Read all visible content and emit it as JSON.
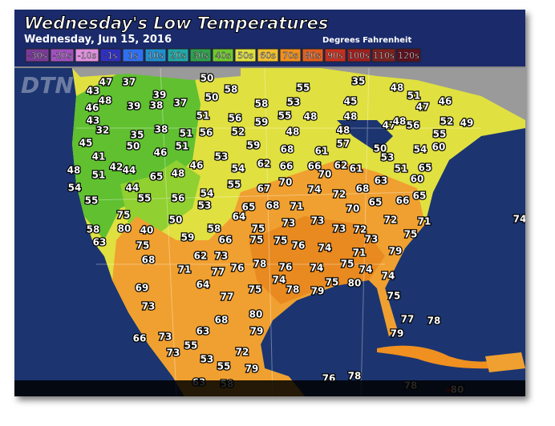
{
  "header": {
    "title": "Wednesday's Low Temperatures",
    "subtitle": "Wednesday, Jun 15, 2016",
    "units": "Degrees Fahrenheit",
    "logo": "DTN"
  },
  "legend": [
    {
      "label": "-30s",
      "color": "#7a3a9a"
    },
    {
      "label": "-20s",
      "color": "#a050c0"
    },
    {
      "label": "-10s",
      "color": "#e090e0"
    },
    {
      "label": "-1s",
      "color": "#3030c0"
    },
    {
      "label": "1s",
      "color": "#3070f0"
    },
    {
      "label": "10s",
      "color": "#2090d0"
    },
    {
      "label": "20s",
      "color": "#20a8a8"
    },
    {
      "label": "30s",
      "color": "#30a050"
    },
    {
      "label": "40s",
      "color": "#70c830"
    },
    {
      "label": "50s",
      "color": "#e0e040"
    },
    {
      "label": "60s",
      "color": "#f0c030"
    },
    {
      "label": "70s",
      "color": "#f09020"
    },
    {
      "label": "80s",
      "color": "#e06020"
    },
    {
      "label": "90s",
      "color": "#c83020"
    },
    {
      "label": "100s",
      "color": "#a02020"
    },
    {
      "label": "110s",
      "color": "#802020"
    },
    {
      "label": "120s",
      "color": "#601020"
    }
  ],
  "readings": [
    47,
    37,
    50,
    55,
    35,
    48,
    43,
    39,
    58,
    51,
    48,
    50,
    37,
    58,
    53,
    45,
    47,
    46,
    46,
    39,
    38,
    43,
    51,
    56,
    55,
    48,
    48,
    47,
    56,
    52,
    49,
    32,
    38,
    51,
    56,
    52,
    59,
    48,
    48,
    48,
    55,
    35,
    45,
    50,
    51,
    59,
    68,
    61,
    57,
    50,
    53,
    54,
    60,
    46,
    53,
    41,
    42,
    44,
    62,
    66,
    66,
    62,
    61,
    51,
    65,
    48,
    51,
    65,
    48,
    46,
    54,
    70,
    60,
    54,
    44,
    55,
    67,
    70,
    74,
    72,
    68,
    63,
    55,
    55,
    56,
    54,
    53,
    66,
    65,
    65,
    68,
    71,
    70,
    65,
    75,
    64,
    73,
    73,
    72,
    71,
    74,
    58,
    80,
    40,
    50,
    58,
    75,
    73,
    72,
    59,
    66,
    75,
    75,
    76,
    74,
    73,
    75,
    63,
    75,
    73,
    62,
    71,
    79,
    68,
    78,
    76,
    74,
    75,
    74,
    71,
    77,
    76,
    74,
    74,
    75,
    80,
    69,
    64,
    75,
    78,
    79,
    75,
    73,
    77,
    80,
    77,
    78,
    68,
    63,
    79,
    79,
    66,
    73,
    55,
    72,
    73,
    53,
    55,
    79,
    76,
    78,
    63,
    58,
    78,
    80
  ]
}
